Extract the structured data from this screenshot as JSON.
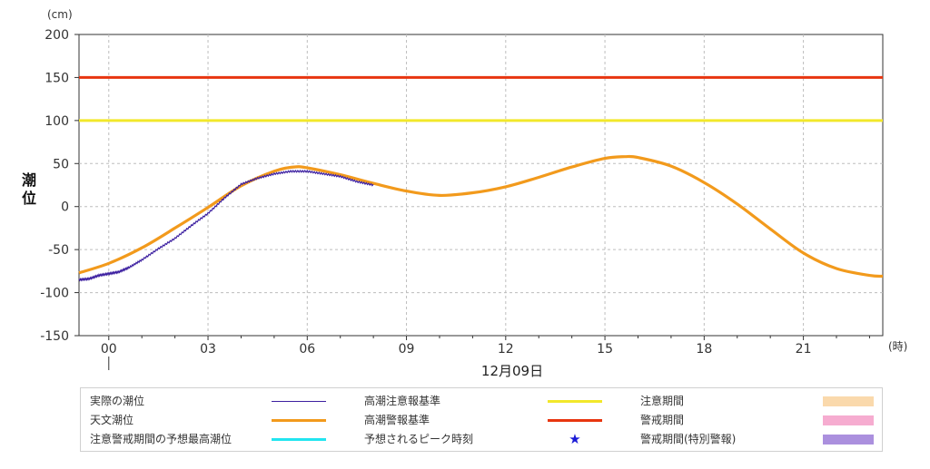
{
  "chart_data": {
    "type": "line",
    "y_unit": "(cm)",
    "ylabel": "潮位",
    "x_unit": "(時)",
    "date_label": "12月09日",
    "ylim": [
      -150,
      200
    ],
    "xlim": [
      -0.9,
      23.4
    ],
    "yticks": [
      "-150",
      "-100",
      "-50",
      "0",
      "50",
      "100",
      "150",
      "200"
    ],
    "ytick_values": [
      -150,
      -100,
      -50,
      0,
      50,
      100,
      150,
      200
    ],
    "xticks": [
      "00",
      "03",
      "06",
      "09",
      "12",
      "15",
      "18",
      "21"
    ],
    "xtick_values": [
      0,
      3,
      6,
      9,
      12,
      15,
      18,
      21
    ],
    "grid": true,
    "thresholds": [
      {
        "name": "高潮注意報基準",
        "value": 100,
        "color": "#f2e82a"
      },
      {
        "name": "高潮警報基準",
        "value": 150,
        "color": "#e8350f"
      }
    ],
    "series": [
      {
        "name": "天文潮位",
        "color": "#f29a1c",
        "x": [
          -0.9,
          0,
          1,
          2,
          3,
          4,
          5,
          5.6,
          6,
          7,
          8,
          9,
          10,
          11,
          12,
          13,
          14,
          15,
          15.6,
          16,
          17,
          18,
          19,
          20,
          21,
          22,
          23,
          23.4
        ],
        "y": [
          -77,
          -66,
          -48,
          -25,
          -1,
          24,
          41,
          46,
          45,
          37,
          27,
          18,
          13,
          16,
          23,
          34,
          46,
          56,
          58,
          57,
          47,
          28,
          3,
          -26,
          -54,
          -72,
          -80,
          -81
        ]
      },
      {
        "name": "実際の潮位",
        "color": "#3c1fa0",
        "x": [
          -0.9,
          -0.6,
          -0.3,
          0,
          0.3,
          0.6,
          1,
          1.5,
          2,
          2.5,
          3,
          3.5,
          4,
          4.5,
          5,
          5.5,
          6,
          6.5,
          7,
          7.5,
          8
        ],
        "y": [
          -85,
          -84,
          -80,
          -78,
          -76,
          -71,
          -62,
          -49,
          -37,
          -22,
          -8,
          10,
          26,
          33,
          38,
          41,
          41,
          38,
          35,
          29,
          25
        ]
      }
    ]
  },
  "legend": {
    "observed": "実際の潮位",
    "astronomical": "天文潮位",
    "predicted_peak": "注意警戒期間の予想最高潮位",
    "advisory_level": "高潮注意報基準",
    "warning_level": "高潮警報基準",
    "peak_time": "予想されるピーク時刻",
    "advisory_period": "注意期間",
    "warning_period": "警戒期間",
    "special_warning_period": "警戒期間(特別警報)"
  },
  "colors": {
    "observed": "#3c1fa0",
    "astronomical": "#f29a1c",
    "predicted_peak": "#22e5f0",
    "advisory_level": "#f2e82a",
    "warning_level": "#e8350f",
    "peak_star": "#1a1ad6",
    "advisory_period": "#fad9ac",
    "warning_period": "#f6acd0",
    "special_warning_period": "#ab90de"
  },
  "icons": {
    "peak_time": "★"
  }
}
